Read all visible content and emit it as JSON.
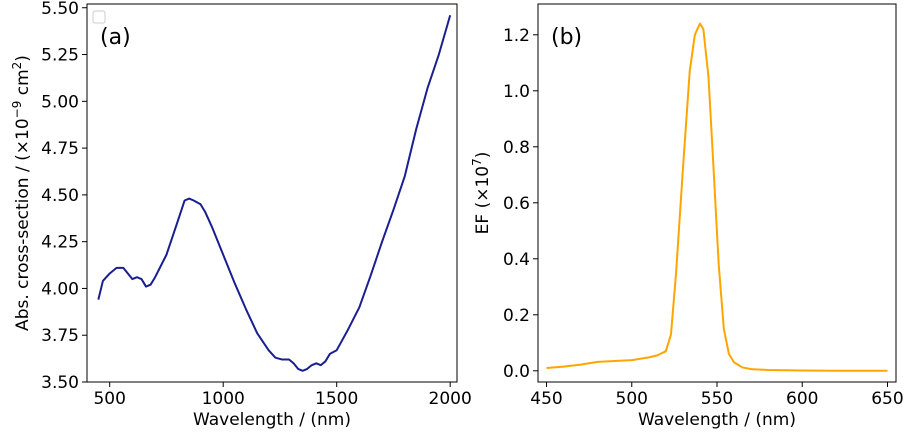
{
  "chart_data": [
    {
      "type": "line",
      "panel_label": "(a)",
      "xlabel": "Wavelength / (nm)",
      "ylabel_main": "Abs. cross-section / (×10",
      "ylabel_exp": "−9",
      "ylabel_tail": " cm",
      "ylabel_sup2": "2",
      "ylabel_close": ")",
      "xlim": [
        400,
        2030
      ],
      "ylim": [
        3.5,
        5.52
      ],
      "xticks": [
        500,
        1000,
        1500,
        2000
      ],
      "xtick_labels": [
        "500",
        "1000",
        "1500",
        "2000"
      ],
      "yticks": [
        3.5,
        3.75,
        4.0,
        4.25,
        4.5,
        4.75,
        5.0,
        5.25,
        5.5
      ],
      "ytick_labels": [
        "3.50",
        "3.75",
        "4.00",
        "4.25",
        "4.50",
        "4.75",
        "5.00",
        "5.25",
        "5.50"
      ],
      "grid": false,
      "legend": "empty box, top-left",
      "series": [
        {
          "color": "#1a1f8f",
          "x": [
            450,
            470,
            500,
            530,
            560,
            580,
            600,
            620,
            640,
            660,
            680,
            700,
            750,
            800,
            830,
            850,
            870,
            900,
            920,
            950,
            1000,
            1050,
            1100,
            1150,
            1200,
            1230,
            1260,
            1290,
            1310,
            1330,
            1350,
            1370,
            1390,
            1410,
            1430,
            1450,
            1470,
            1500,
            1550,
            1600,
            1650,
            1700,
            1750,
            1800,
            1850,
            1900,
            1950,
            2000
          ],
          "y": [
            3.94,
            4.04,
            4.08,
            4.11,
            4.11,
            4.08,
            4.05,
            4.06,
            4.05,
            4.01,
            4.02,
            4.06,
            4.18,
            4.36,
            4.47,
            4.48,
            4.47,
            4.45,
            4.41,
            4.33,
            4.18,
            4.03,
            3.89,
            3.76,
            3.67,
            3.63,
            3.62,
            3.62,
            3.6,
            3.57,
            3.56,
            3.57,
            3.59,
            3.6,
            3.59,
            3.61,
            3.65,
            3.67,
            3.78,
            3.9,
            4.07,
            4.25,
            4.42,
            4.6,
            4.85,
            5.07,
            5.25,
            5.46
          ]
        }
      ]
    },
    {
      "type": "line",
      "panel_label": "(b)",
      "xlabel": "Wavelength / (nm)",
      "ylabel_main": "EF (×10",
      "ylabel_exp": "7",
      "ylabel_close": ")",
      "xlim": [
        445,
        655
      ],
      "ylim": [
        -0.04,
        1.31
      ],
      "xticks": [
        450,
        500,
        550,
        600,
        650
      ],
      "xtick_labels": [
        "450",
        "500",
        "550",
        "600",
        "650"
      ],
      "yticks": [
        0.0,
        0.2,
        0.4,
        0.6,
        0.8,
        1.0,
        1.2
      ],
      "ytick_labels": [
        "0.0",
        "0.2",
        "0.4",
        "0.6",
        "0.8",
        "1.0",
        "1.2"
      ],
      "grid": false,
      "series": [
        {
          "color": "#ffa500",
          "x": [
            450,
            460,
            470,
            480,
            490,
            500,
            510,
            515,
            520,
            523,
            526,
            530,
            534,
            537,
            540,
            542,
            545,
            548,
            551,
            554,
            557,
            560,
            565,
            570,
            580,
            600,
            620,
            650
          ],
          "y": [
            0.01,
            0.015,
            0.022,
            0.032,
            0.035,
            0.038,
            0.048,
            0.055,
            0.07,
            0.13,
            0.35,
            0.72,
            1.07,
            1.2,
            1.24,
            1.22,
            1.05,
            0.72,
            0.38,
            0.15,
            0.06,
            0.03,
            0.012,
            0.006,
            0.003,
            0.001,
            0.0,
            0.0
          ]
        }
      ]
    }
  ]
}
